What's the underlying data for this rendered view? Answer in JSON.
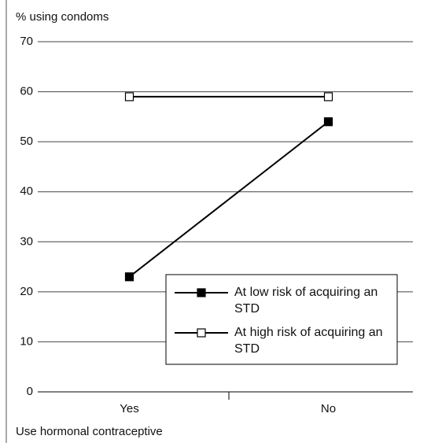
{
  "chart_data": {
    "type": "line",
    "y_axis_label": "% using condoms",
    "x_axis_label": "Use hormonal contraceptive",
    "categories": [
      "Yes",
      "No"
    ],
    "series": [
      {
        "name": "At low risk of acquiring an STD",
        "color": "#000000",
        "marker": "filled-square",
        "values": [
          23,
          54
        ]
      },
      {
        "name": "At high risk of acquiring an STD",
        "color": "#000000",
        "marker": "open-square",
        "values": [
          59,
          59
        ]
      }
    ],
    "ylim": [
      0,
      70
    ],
    "yticks": [
      0,
      10,
      20,
      30,
      40,
      50,
      60,
      70
    ],
    "grid": true
  }
}
